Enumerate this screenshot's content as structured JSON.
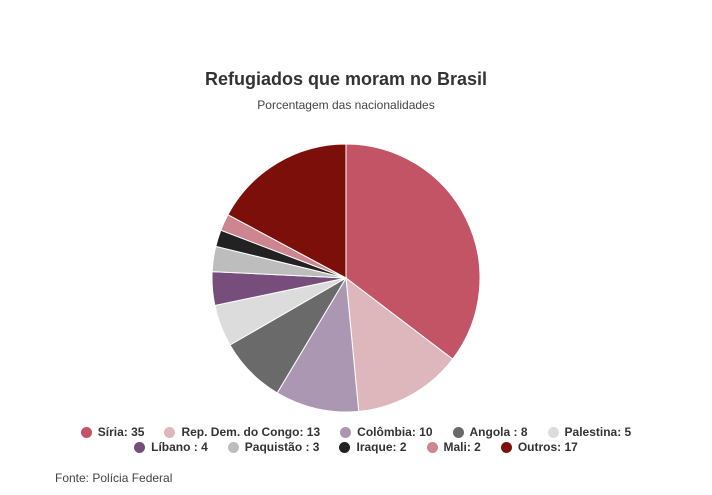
{
  "chart_data": {
    "type": "pie",
    "title": "Refugiados que moram no Brasil",
    "subtitle": "Porcentagem das nacionalidades",
    "categories": [
      "Síria: 35",
      "Rep. Dem. do Congo: 13",
      "Colômbia: 10",
      "Angola : 8",
      "Palestina: 5",
      "Líbano : 4",
      "Paquistão : 3",
      "Iraque: 2",
      "Mali: 2",
      "Outros: 17"
    ],
    "values": [
      35,
      13,
      10,
      8,
      5,
      4,
      3,
      2,
      2,
      17
    ],
    "colors": [
      "#c25466",
      "#deb7bc",
      "#ab97b2",
      "#6a6a6a",
      "#dcdcdc",
      "#774e7b",
      "#bdbdbd",
      "#222222",
      "#cd8590",
      "#7d0f0a"
    ],
    "source": "Fonte: Polícia Federal"
  }
}
